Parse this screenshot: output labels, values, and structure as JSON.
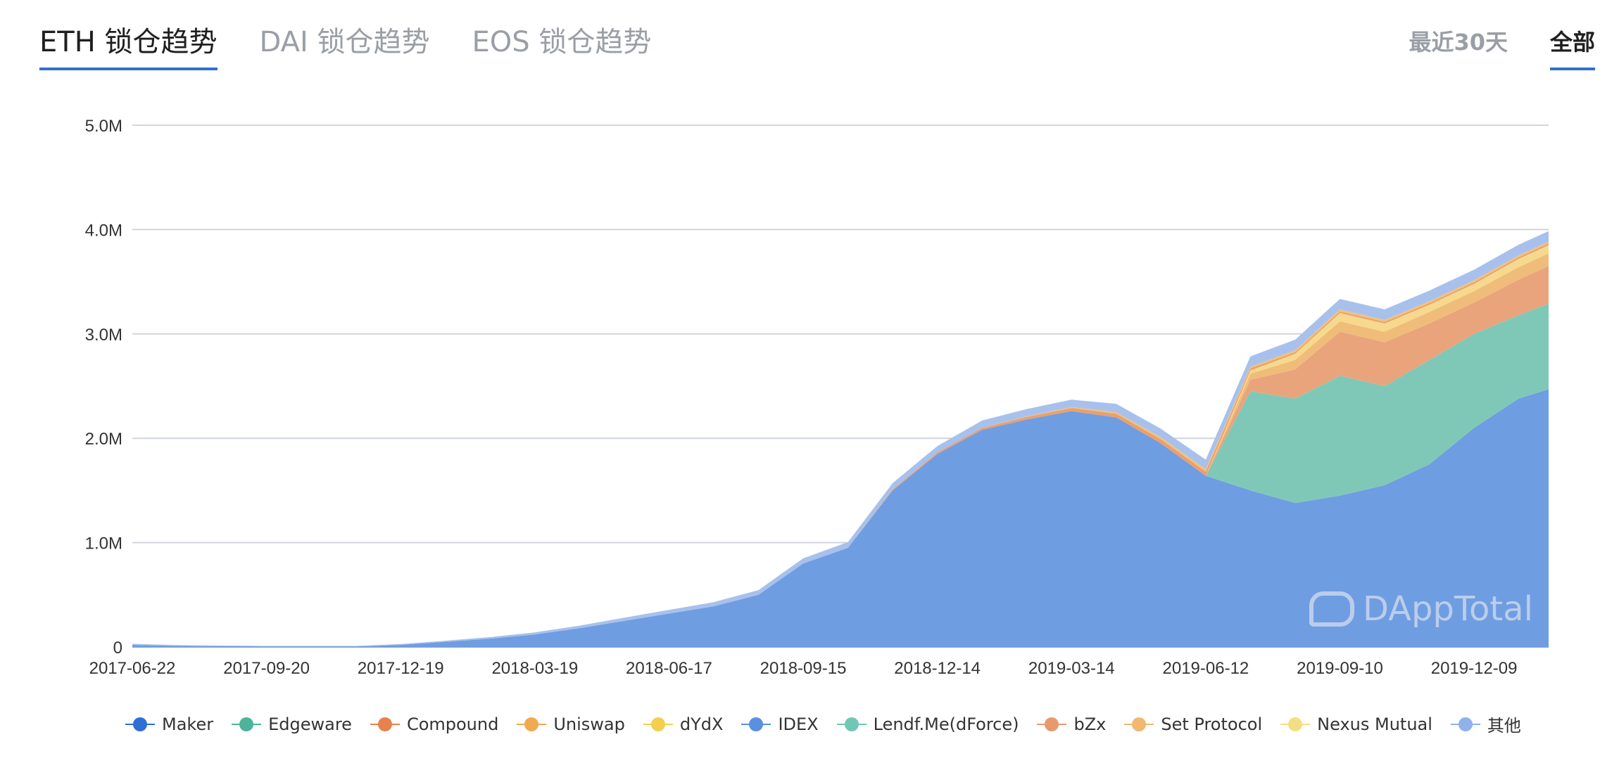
{
  "tabs": [
    {
      "label": "ETH 锁仓趋势",
      "active": true
    },
    {
      "label": "DAI 锁仓趋势",
      "active": false
    },
    {
      "label": "EOS 锁仓趋势",
      "active": false
    }
  ],
  "range_tabs": [
    {
      "label": "最近30天",
      "active": false
    },
    {
      "label": "全部",
      "active": true
    }
  ],
  "watermark": "DAppTotal",
  "chart_data": {
    "type": "area",
    "stacked": true,
    "x": [
      "2017-06-22",
      "2017-07-22",
      "2017-08-21",
      "2017-09-20",
      "2017-10-20",
      "2017-11-19",
      "2017-12-19",
      "2018-01-18",
      "2018-02-17",
      "2018-03-19",
      "2018-04-18",
      "2018-05-18",
      "2018-06-17",
      "2018-07-17",
      "2018-08-16",
      "2018-09-15",
      "2018-10-15",
      "2018-11-14",
      "2018-12-14",
      "2019-01-13",
      "2019-02-12",
      "2019-03-14",
      "2019-04-13",
      "2019-05-13",
      "2019-06-12",
      "2019-07-12",
      "2019-08-11",
      "2019-09-10",
      "2019-10-10",
      "2019-11-09",
      "2019-12-09",
      "2020-01-08",
      "2020-01-28"
    ],
    "x_ticks": [
      "2017-06-22",
      "2017-09-20",
      "2017-12-19",
      "2018-03-19",
      "2018-06-17",
      "2018-09-15",
      "2018-12-14",
      "2019-03-14",
      "2019-06-12",
      "2019-09-10",
      "2019-12-09"
    ],
    "y_ticks": [
      "0",
      "1.0M",
      "2.0M",
      "3.0M",
      "4.0M",
      "5.0M"
    ],
    "ylim": [
      0,
      5000000
    ],
    "grid": true,
    "legend_position": "bottom",
    "series": [
      {
        "name": "Maker",
        "color": "#6e9de2",
        "values": [
          20000,
          10000,
          8000,
          5000,
          5000,
          5000,
          20000,
          50000,
          80000,
          120000,
          180000,
          250000,
          320000,
          390000,
          500000,
          800000,
          950000,
          1500000,
          1850000,
          2080000,
          2180000,
          2260000,
          2200000,
          1950000,
          1640000,
          1500000,
          1380000,
          1450000,
          1550000,
          1750000,
          2100000,
          2380000,
          2470000
        ]
      },
      {
        "name": "Lendf.Me(dForce)",
        "color": "#7fc8b8",
        "values": [
          0,
          0,
          0,
          0,
          0,
          0,
          0,
          0,
          0,
          0,
          0,
          0,
          0,
          0,
          0,
          0,
          0,
          0,
          0,
          0,
          0,
          0,
          0,
          0,
          0,
          950000,
          1000000,
          1150000,
          950000,
          1000000,
          900000,
          800000,
          820000
        ]
      },
      {
        "name": "bZx",
        "color": "#e9a47c",
        "values": [
          0,
          0,
          0,
          0,
          0,
          0,
          0,
          0,
          0,
          0,
          0,
          0,
          0,
          0,
          0,
          0,
          0,
          0,
          0,
          0,
          0,
          0,
          0,
          0,
          0,
          110000,
          280000,
          420000,
          420000,
          350000,
          300000,
          340000,
          360000
        ]
      },
      {
        "name": "Set Protocol",
        "color": "#f0bc7a",
        "values": [
          0,
          0,
          0,
          0,
          0,
          0,
          0,
          0,
          0,
          0,
          0,
          0,
          0,
          0,
          0,
          0,
          0,
          0,
          0,
          0,
          0,
          0,
          0,
          0,
          0,
          60000,
          90000,
          100000,
          100000,
          110000,
          110000,
          120000,
          120000
        ]
      },
      {
        "name": "Nexus Mutual",
        "color": "#f6d98c",
        "values": [
          0,
          0,
          0,
          0,
          0,
          0,
          0,
          0,
          0,
          0,
          0,
          0,
          0,
          0,
          0,
          0,
          0,
          0,
          0,
          0,
          0,
          0,
          0,
          0,
          0,
          30000,
          60000,
          80000,
          80000,
          70000,
          70000,
          80000,
          80000
        ]
      },
      {
        "name": "Compound",
        "color": "#e9a06e",
        "values": [
          0,
          0,
          0,
          0,
          0,
          0,
          0,
          0,
          0,
          0,
          0,
          0,
          0,
          0,
          0,
          0,
          0,
          10000,
          15000,
          20000,
          25000,
          30000,
          35000,
          40000,
          40000,
          20000,
          15000,
          15000,
          15000,
          15000,
          15000,
          15000,
          15000
        ]
      },
      {
        "name": "Uniswap",
        "color": "#f2c07e",
        "values": [
          0,
          0,
          0,
          0,
          0,
          0,
          0,
          0,
          0,
          0,
          0,
          0,
          0,
          0,
          0,
          0,
          0,
          0,
          0,
          0,
          5000,
          10000,
          15000,
          20000,
          25000,
          15000,
          20000,
          20000,
          20000,
          20000,
          20000,
          20000,
          20000
        ]
      },
      {
        "name": "其他",
        "color": "#a7c1ec",
        "values": [
          10000,
          8000,
          6000,
          5000,
          5000,
          5000,
          8000,
          10000,
          15000,
          20000,
          25000,
          30000,
          35000,
          40000,
          45000,
          50000,
          55000,
          60000,
          60000,
          70000,
          70000,
          70000,
          80000,
          80000,
          90000,
          100000,
          100000,
          100000,
          100000,
          100000,
          100000,
          100000,
          100000
        ]
      }
    ],
    "legend": [
      {
        "name": "Maker",
        "color": "#2f6fd6"
      },
      {
        "name": "Edgeware",
        "color": "#4db39b"
      },
      {
        "name": "Compound",
        "color": "#e6824d"
      },
      {
        "name": "Uniswap",
        "color": "#efaa52"
      },
      {
        "name": "dYdX",
        "color": "#f2cf4f"
      },
      {
        "name": "IDEX",
        "color": "#5a90e0"
      },
      {
        "name": "Lendf.Me(dForce)",
        "color": "#72c6b6"
      },
      {
        "name": "bZx",
        "color": "#e89a6f"
      },
      {
        "name": "Set Protocol",
        "color": "#f1b870"
      },
      {
        "name": "Nexus Mutual",
        "color": "#f3de86"
      },
      {
        "name": "其他",
        "color": "#8fb2ea"
      }
    ]
  }
}
